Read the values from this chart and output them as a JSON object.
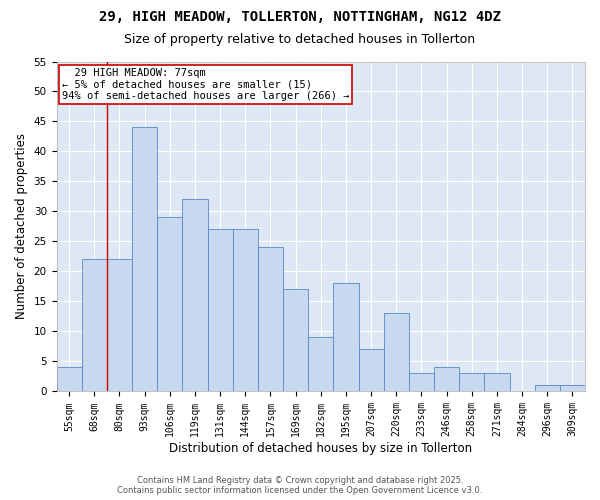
{
  "title": "29, HIGH MEADOW, TOLLERTON, NOTTINGHAM, NG12 4DZ",
  "subtitle": "Size of property relative to detached houses in Tollerton",
  "xlabel": "Distribution of detached houses by size in Tollerton",
  "ylabel": "Number of detached properties",
  "bar_color": "#c8d8ee",
  "bar_edge_color": "#5588cc",
  "background_color": "#dde8f4",
  "plot_bg_color": "#dde8f4",
  "grid_color": "#ffffff",
  "fig_bg_color": "#ffffff",
  "categories": [
    "55sqm",
    "68sqm",
    "80sqm",
    "93sqm",
    "106sqm",
    "119sqm",
    "131sqm",
    "144sqm",
    "157sqm",
    "169sqm",
    "182sqm",
    "195sqm",
    "207sqm",
    "220sqm",
    "233sqm",
    "246sqm",
    "258sqm",
    "271sqm",
    "284sqm",
    "296sqm",
    "309sqm"
  ],
  "values": [
    4,
    22,
    22,
    44,
    29,
    32,
    27,
    27,
    24,
    17,
    9,
    18,
    7,
    13,
    3,
    4,
    3,
    3,
    0,
    1,
    1
  ],
  "annotation_text": "  29 HIGH MEADOW: 77sqm  \n← 5% of detached houses are smaller (15)\n94% of semi-detached houses are larger (266) →",
  "annotation_box_color": "#ffffff",
  "annotation_box_edge_color": "#cc0000",
  "vline_x": 1.5,
  "vline_color": "#cc0000",
  "ylim": [
    0,
    55
  ],
  "yticks": [
    0,
    5,
    10,
    15,
    20,
    25,
    30,
    35,
    40,
    45,
    50,
    55
  ],
  "footer_text": "Contains HM Land Registry data © Crown copyright and database right 2025.\nContains public sector information licensed under the Open Government Licence v3.0.",
  "title_fontsize": 10,
  "subtitle_fontsize": 9,
  "axis_label_fontsize": 8.5,
  "tick_fontsize": 7,
  "annotation_fontsize": 7.5,
  "footer_fontsize": 6
}
